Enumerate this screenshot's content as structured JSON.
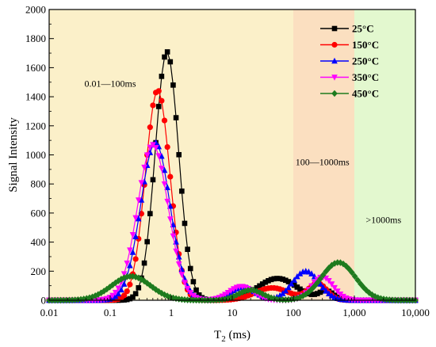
{
  "chart_data": {
    "type": "line",
    "xlabel": "T2 (ms)",
    "ylabel": "Signal Intensity",
    "xscale": "log",
    "xlim": [
      0.01,
      10000
    ],
    "ylim": [
      0,
      2000
    ],
    "x_ticks": [
      {
        "value": 0.01,
        "label": "0.01"
      },
      {
        "value": 0.1,
        "label": "0.1"
      },
      {
        "value": 1,
        "label": "1"
      },
      {
        "value": 10,
        "label": "10"
      },
      {
        "value": 100,
        "label": "100"
      },
      {
        "value": 1000,
        "label": "1,000"
      },
      {
        "value": 10000,
        "label": "10,000"
      }
    ],
    "y_ticks": [
      0,
      200,
      400,
      600,
      800,
      1000,
      1200,
      1400,
      1600,
      1800,
      2000
    ],
    "regions": [
      {
        "from": 0.01,
        "to": 100,
        "color": "#fbf0c9",
        "label": "0.01—100ms",
        "label_x": 0.1,
        "label_y": 1470
      },
      {
        "from": 100,
        "to": 1000,
        "color": "#fbdfc0",
        "label": "100—1000ms",
        "label_x": 300,
        "label_y": 930
      },
      {
        "from": 1000,
        "to": 10000,
        "color": "#e3f8cf",
        "label": ">1000ms",
        "label_x": 3000,
        "label_y": 530
      }
    ],
    "legend_position": "top-right",
    "series": [
      {
        "name": "25°C",
        "color": "#000000",
        "marker": "square",
        "peaks": [
          {
            "center": 0.85,
            "sigma_log": 0.19,
            "height": 1710
          },
          {
            "center": 55,
            "sigma_log": 0.32,
            "height": 150
          },
          {
            "center": 350,
            "sigma_log": 0.12,
            "height": 60
          }
        ]
      },
      {
        "name": "150°C",
        "color": "#ff0000",
        "marker": "circle",
        "peaks": [
          {
            "center": 0.6,
            "sigma_log": 0.2,
            "height": 1445
          },
          {
            "center": 45,
            "sigma_log": 0.28,
            "height": 85
          },
          {
            "center": 250,
            "sigma_log": 0.15,
            "height": 115
          }
        ]
      },
      {
        "name": "250°C",
        "color": "#0000ff",
        "marker": "triangle-up",
        "peaks": [
          {
            "center": 0.55,
            "sigma_log": 0.24,
            "height": 1085
          },
          {
            "center": 15,
            "sigma_log": 0.2,
            "height": 90
          },
          {
            "center": 160,
            "sigma_log": 0.22,
            "height": 200
          }
        ]
      },
      {
        "name": "350°C",
        "color": "#ff00ff",
        "marker": "triangle-down",
        "peaks": [
          {
            "center": 0.5,
            "sigma_log": 0.25,
            "height": 1070
          },
          {
            "center": 14,
            "sigma_log": 0.2,
            "height": 95
          },
          {
            "center": 300,
            "sigma_log": 0.18,
            "height": 160
          }
        ]
      },
      {
        "name": "450°C",
        "color": "#1e7b1e",
        "marker": "diamond",
        "peaks": [
          {
            "center": 0.22,
            "sigma_log": 0.32,
            "height": 165
          },
          {
            "center": 20,
            "sigma_log": 0.2,
            "height": 70
          },
          {
            "center": 550,
            "sigma_log": 0.28,
            "height": 260
          }
        ]
      }
    ]
  }
}
